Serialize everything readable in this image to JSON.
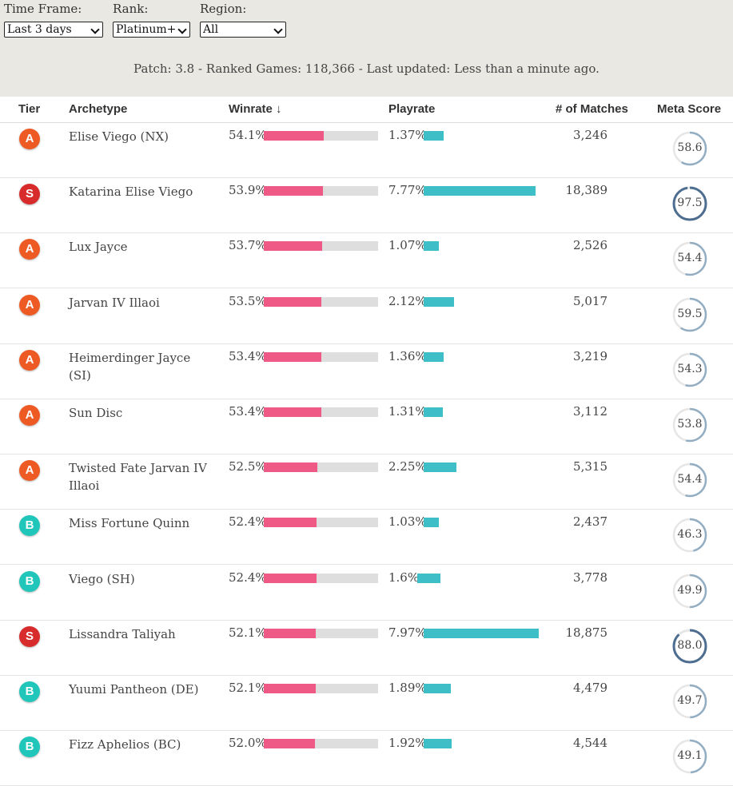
{
  "filters": {
    "time_frame": {
      "label": "Time Frame:",
      "value": "Last 3 days"
    },
    "rank": {
      "label": "Rank:",
      "value": "Platinum+"
    },
    "region": {
      "label": "Region:",
      "value": "All"
    }
  },
  "status_line": "Patch: 3.8 - Ranked Games: 118,366 - Last updated: Less than a minute ago.",
  "columns": {
    "tier": "Tier",
    "archetype": "Archetype",
    "winrate": "Winrate ↓",
    "playrate": "Playrate",
    "matches": "# of Matches",
    "meta_score": "Meta Score"
  },
  "colors": {
    "tier_S": "#d82c2c",
    "tier_A": "#ee5a24",
    "tier_B": "#1fc6b9",
    "winrate_bar": "#ee5a85",
    "playrate_bar": "#3ebfc7",
    "meta_ring_high": "#4d6e90",
    "meta_ring_normal": "#93aec3"
  },
  "rows": [
    {
      "tier": "A",
      "archetype": "Elise Viego (NX)",
      "winrate": "54.1%",
      "winrate_value": 54.1,
      "playrate": "1.37%",
      "playrate_value": 1.37,
      "matches": "3,246",
      "meta_score": "58.6",
      "meta_value": 58.6
    },
    {
      "tier": "S",
      "archetype": "Katarina Elise Viego",
      "winrate": "53.9%",
      "winrate_value": 53.9,
      "playrate": "7.77%",
      "playrate_value": 7.77,
      "matches": "18,389",
      "meta_score": "97.5",
      "meta_value": 97.5
    },
    {
      "tier": "A",
      "archetype": "Lux Jayce",
      "winrate": "53.7%",
      "winrate_value": 53.7,
      "playrate": "1.07%",
      "playrate_value": 1.07,
      "matches": "2,526",
      "meta_score": "54.4",
      "meta_value": 54.4
    },
    {
      "tier": "A",
      "archetype": "Jarvan IV Illaoi",
      "winrate": "53.5%",
      "winrate_value": 53.5,
      "playrate": "2.12%",
      "playrate_value": 2.12,
      "matches": "5,017",
      "meta_score": "59.5",
      "meta_value": 59.5
    },
    {
      "tier": "A",
      "archetype": "Heimerdinger Jayce (SI)",
      "winrate": "53.4%",
      "winrate_value": 53.4,
      "playrate": "1.36%",
      "playrate_value": 1.36,
      "matches": "3,219",
      "meta_score": "54.3",
      "meta_value": 54.3
    },
    {
      "tier": "A",
      "archetype": "Sun Disc",
      "winrate": "53.4%",
      "winrate_value": 53.4,
      "playrate": "1.31%",
      "playrate_value": 1.31,
      "matches": "3,112",
      "meta_score": "53.8",
      "meta_value": 53.8
    },
    {
      "tier": "A",
      "archetype": "Twisted Fate Jarvan IV Illaoi",
      "winrate": "52.5%",
      "winrate_value": 52.5,
      "playrate": "2.25%",
      "playrate_value": 2.25,
      "matches": "5,315",
      "meta_score": "54.4",
      "meta_value": 54.4
    },
    {
      "tier": "B",
      "archetype": "Miss Fortune Quinn",
      "winrate": "52.4%",
      "winrate_value": 52.4,
      "playrate": "1.03%",
      "playrate_value": 1.03,
      "matches": "2,437",
      "meta_score": "46.3",
      "meta_value": 46.3
    },
    {
      "tier": "B",
      "archetype": "Viego (SH)",
      "winrate": "52.4%",
      "winrate_value": 52.4,
      "playrate": "1.6%",
      "playrate_value": 1.6,
      "matches": "3,778",
      "meta_score": "49.9",
      "meta_value": 49.9
    },
    {
      "tier": "S",
      "archetype": "Lissandra Taliyah",
      "winrate": "52.1%",
      "winrate_value": 52.1,
      "playrate": "7.97%",
      "playrate_value": 7.97,
      "matches": "18,875",
      "meta_score": "88.0",
      "meta_value": 88.0
    },
    {
      "tier": "B",
      "archetype": "Yuumi Pantheon (DE)",
      "winrate": "52.1%",
      "winrate_value": 52.1,
      "playrate": "1.89%",
      "playrate_value": 1.89,
      "matches": "4,479",
      "meta_score": "49.7",
      "meta_value": 49.7
    },
    {
      "tier": "B",
      "archetype": "Fizz Aphelios (BC)",
      "winrate": "52.0%",
      "winrate_value": 52.0,
      "playrate": "1.92%",
      "playrate_value": 1.92,
      "matches": "4,544",
      "meta_score": "49.1",
      "meta_value": 49.1
    }
  ]
}
